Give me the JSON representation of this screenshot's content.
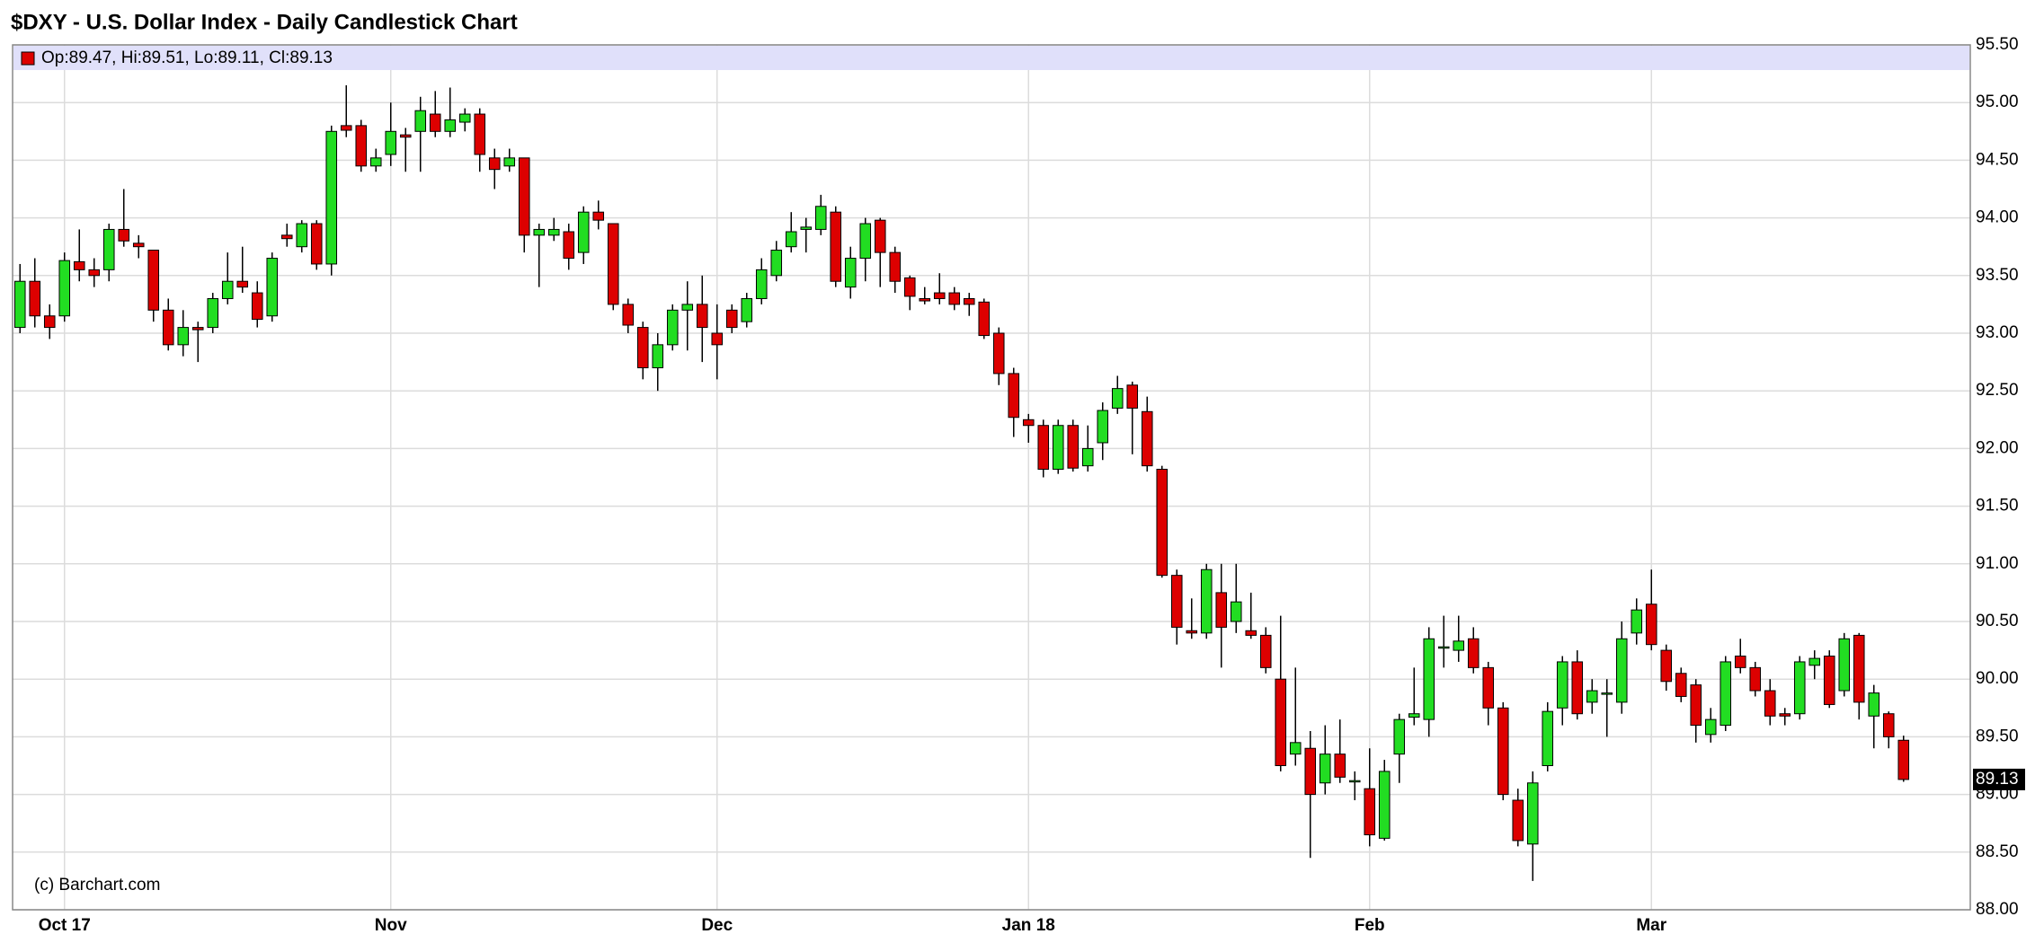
{
  "chart_data": {
    "type": "candlestick",
    "title": "$DXY - U.S. Dollar Index - Daily Candlestick Chart",
    "ohlc_label": "Op:89.47, Hi:89.51, Lo:89.11, Cl:89.13",
    "credit": "(c) Barchart.com",
    "up_color": "#22dd22",
    "down_color": "#dd0000",
    "grid": true,
    "ylim": [
      88,
      95.5
    ],
    "yticks": [
      {
        "value": 88,
        "label": "88.00"
      },
      {
        "value": 88.5,
        "label": "88.50"
      },
      {
        "value": 89,
        "label": "89.00"
      },
      {
        "value": 89.5,
        "label": "89.50"
      },
      {
        "value": 90,
        "label": "90.00"
      },
      {
        "value": 90.5,
        "label": "90.50"
      },
      {
        "value": 91,
        "label": "91.00"
      },
      {
        "value": 91.5,
        "label": "91.50"
      },
      {
        "value": 92,
        "label": "92.00"
      },
      {
        "value": 92.5,
        "label": "92.50"
      },
      {
        "value": 93,
        "label": "93.00"
      },
      {
        "value": 93.5,
        "label": "93.50"
      },
      {
        "value": 94,
        "label": "94.00"
      },
      {
        "value": 94.5,
        "label": "94.50"
      },
      {
        "value": 95,
        "label": "95.00"
      },
      {
        "value": 95.5,
        "label": "95.50"
      }
    ],
    "categories": [
      null,
      null,
      null,
      "Oct 17",
      null,
      null,
      null,
      null,
      null,
      null,
      null,
      null,
      null,
      null,
      null,
      null,
      null,
      null,
      null,
      null,
      null,
      null,
      null,
      null,
      null,
      "Nov",
      null,
      null,
      null,
      null,
      null,
      null,
      null,
      null,
      null,
      null,
      null,
      null,
      null,
      null,
      null,
      null,
      null,
      null,
      null,
      null,
      null,
      "Dec",
      null,
      null,
      null,
      null,
      null,
      null,
      null,
      null,
      null,
      null,
      null,
      null,
      null,
      null,
      null,
      null,
      null,
      null,
      null,
      null,
      "Jan 18",
      null,
      null,
      null,
      null,
      null,
      null,
      null,
      null,
      null,
      null,
      null,
      null,
      null,
      null,
      null,
      null,
      null,
      null,
      null,
      null,
      null,
      null,
      "Feb",
      null,
      null,
      null,
      null,
      null,
      null,
      null,
      null,
      null,
      null,
      null,
      null,
      null,
      null,
      null,
      null,
      null,
      null,
      "Mar",
      null,
      null,
      null,
      null,
      null,
      null,
      null,
      null,
      null,
      null,
      null,
      null,
      null,
      null,
      null,
      null,
      null
    ],
    "candles": [
      {
        "open": 93.05,
        "high": 93.6,
        "low": 93.0,
        "close": 93.45
      },
      {
        "open": 93.45,
        "high": 93.65,
        "low": 93.05,
        "close": 93.15
      },
      {
        "open": 93.15,
        "high": 93.25,
        "low": 92.95,
        "close": 93.05
      },
      {
        "open": 93.15,
        "high": 93.7,
        "low": 93.1,
        "close": 93.63
      },
      {
        "open": 93.62,
        "high": 93.9,
        "low": 93.45,
        "close": 93.55
      },
      {
        "open": 93.55,
        "high": 93.65,
        "low": 93.4,
        "close": 93.5
      },
      {
        "open": 93.55,
        "high": 93.95,
        "low": 93.45,
        "close": 93.9
      },
      {
        "open": 93.9,
        "high": 94.25,
        "low": 93.75,
        "close": 93.8
      },
      {
        "open": 93.78,
        "high": 93.85,
        "low": 93.65,
        "close": 93.75
      },
      {
        "open": 93.72,
        "high": 93.72,
        "low": 93.1,
        "close": 93.2
      },
      {
        "open": 93.2,
        "high": 93.3,
        "low": 92.85,
        "close": 92.9
      },
      {
        "open": 92.9,
        "high": 93.2,
        "low": 92.8,
        "close": 93.05
      },
      {
        "open": 93.05,
        "high": 93.1,
        "low": 92.75,
        "close": 93.03
      },
      {
        "open": 93.05,
        "high": 93.35,
        "low": 93.0,
        "close": 93.3
      },
      {
        "open": 93.3,
        "high": 93.7,
        "low": 93.25,
        "close": 93.45
      },
      {
        "open": 93.45,
        "high": 93.75,
        "low": 93.35,
        "close": 93.4
      },
      {
        "open": 93.35,
        "high": 93.45,
        "low": 93.05,
        "close": 93.12
      },
      {
        "open": 93.15,
        "high": 93.7,
        "low": 93.1,
        "close": 93.65
      },
      {
        "open": 93.85,
        "high": 93.95,
        "low": 93.75,
        "close": 93.82
      },
      {
        "open": 93.75,
        "high": 93.98,
        "low": 93.7,
        "close": 93.95
      },
      {
        "open": 93.95,
        "high": 93.98,
        "low": 93.55,
        "close": 93.6
      },
      {
        "open": 93.6,
        "high": 94.8,
        "low": 93.5,
        "close": 94.75
      },
      {
        "open": 94.8,
        "high": 95.15,
        "low": 94.7,
        "close": 94.76
      },
      {
        "open": 94.8,
        "high": 94.85,
        "low": 94.4,
        "close": 94.45
      },
      {
        "open": 94.45,
        "high": 94.6,
        "low": 94.4,
        "close": 94.52
      },
      {
        "open": 94.55,
        "high": 95.0,
        "low": 94.45,
        "close": 94.75
      },
      {
        "open": 94.72,
        "high": 94.78,
        "low": 94.4,
        "close": 94.7
      },
      {
        "open": 94.75,
        "high": 95.05,
        "low": 94.4,
        "close": 94.93
      },
      {
        "open": 94.9,
        "high": 95.1,
        "low": 94.7,
        "close": 94.75
      },
      {
        "open": 94.75,
        "high": 95.13,
        "low": 94.7,
        "close": 94.85
      },
      {
        "open": 94.83,
        "high": 94.95,
        "low": 94.75,
        "close": 94.9
      },
      {
        "open": 94.9,
        "high": 94.95,
        "low": 94.4,
        "close": 94.55
      },
      {
        "open": 94.52,
        "high": 94.6,
        "low": 94.25,
        "close": 94.42
      },
      {
        "open": 94.45,
        "high": 94.6,
        "low": 94.4,
        "close": 94.52
      },
      {
        "open": 94.52,
        "high": 94.52,
        "low": 93.7,
        "close": 93.85
      },
      {
        "open": 93.85,
        "high": 93.95,
        "low": 93.4,
        "close": 93.9
      },
      {
        "open": 93.85,
        "high": 94.0,
        "low": 93.8,
        "close": 93.9
      },
      {
        "open": 93.88,
        "high": 93.95,
        "low": 93.55,
        "close": 93.65
      },
      {
        "open": 93.7,
        "high": 94.1,
        "low": 93.6,
        "close": 94.05
      },
      {
        "open": 94.05,
        "high": 94.15,
        "low": 93.9,
        "close": 93.98
      },
      {
        "open": 93.95,
        "high": 93.95,
        "low": 93.2,
        "close": 93.25
      },
      {
        "open": 93.25,
        "high": 93.3,
        "low": 93.0,
        "close": 93.07
      },
      {
        "open": 93.05,
        "high": 93.1,
        "low": 92.6,
        "close": 92.7
      },
      {
        "open": 92.7,
        "high": 93.0,
        "low": 92.5,
        "close": 92.9
      },
      {
        "open": 92.9,
        "high": 93.25,
        "low": 92.85,
        "close": 93.2
      },
      {
        "open": 93.2,
        "high": 93.45,
        "low": 92.85,
        "close": 93.25
      },
      {
        "open": 93.25,
        "high": 93.5,
        "low": 92.75,
        "close": 93.05
      },
      {
        "open": 93.0,
        "high": 93.25,
        "low": 92.6,
        "close": 92.9
      },
      {
        "open": 93.2,
        "high": 93.25,
        "low": 93.0,
        "close": 93.05
      },
      {
        "open": 93.1,
        "high": 93.35,
        "low": 93.05,
        "close": 93.3
      },
      {
        "open": 93.3,
        "high": 93.65,
        "low": 93.25,
        "close": 93.55
      },
      {
        "open": 93.5,
        "high": 93.8,
        "low": 93.45,
        "close": 93.72
      },
      {
        "open": 93.75,
        "high": 94.05,
        "low": 93.7,
        "close": 93.88
      },
      {
        "open": 93.9,
        "high": 94.0,
        "low": 93.7,
        "close": 93.92
      },
      {
        "open": 93.9,
        "high": 94.2,
        "low": 93.85,
        "close": 94.1
      },
      {
        "open": 94.05,
        "high": 94.1,
        "low": 93.4,
        "close": 93.45
      },
      {
        "open": 93.4,
        "high": 93.75,
        "low": 93.3,
        "close": 93.65
      },
      {
        "open": 93.65,
        "high": 94.0,
        "low": 93.45,
        "close": 93.95
      },
      {
        "open": 93.98,
        "high": 94.0,
        "low": 93.4,
        "close": 93.7
      },
      {
        "open": 93.7,
        "high": 93.75,
        "low": 93.35,
        "close": 93.45
      },
      {
        "open": 93.48,
        "high": 93.5,
        "low": 93.2,
        "close": 93.32
      },
      {
        "open": 93.3,
        "high": 93.4,
        "low": 93.25,
        "close": 93.28
      },
      {
        "open": 93.35,
        "high": 93.52,
        "low": 93.25,
        "close": 93.3
      },
      {
        "open": 93.35,
        "high": 93.4,
        "low": 93.2,
        "close": 93.25
      },
      {
        "open": 93.3,
        "high": 93.35,
        "low": 93.15,
        "close": 93.25
      },
      {
        "open": 93.27,
        "high": 93.3,
        "low": 92.95,
        "close": 92.98
      },
      {
        "open": 93.0,
        "high": 93.05,
        "low": 92.55,
        "close": 92.65
      },
      {
        "open": 92.65,
        "high": 92.7,
        "low": 92.1,
        "close": 92.27
      },
      {
        "open": 92.25,
        "high": 92.3,
        "low": 92.05,
        "close": 92.2
      },
      {
        "open": 92.2,
        "high": 92.25,
        "low": 91.75,
        "close": 91.82
      },
      {
        "open": 91.82,
        "high": 92.25,
        "low": 91.78,
        "close": 92.2
      },
      {
        "open": 92.2,
        "high": 92.25,
        "low": 91.8,
        "close": 91.83
      },
      {
        "open": 91.85,
        "high": 92.2,
        "low": 91.8,
        "close": 92.0
      },
      {
        "open": 92.05,
        "high": 92.4,
        "low": 91.9,
        "close": 92.33
      },
      {
        "open": 92.35,
        "high": 92.63,
        "low": 92.3,
        "close": 92.52
      },
      {
        "open": 92.55,
        "high": 92.58,
        "low": 91.95,
        "close": 92.35
      },
      {
        "open": 92.32,
        "high": 92.45,
        "low": 91.8,
        "close": 91.85
      },
      {
        "open": 91.82,
        "high": 91.85,
        "low": 90.88,
        "close": 90.9
      },
      {
        "open": 90.9,
        "high": 90.95,
        "low": 90.3,
        "close": 90.45
      },
      {
        "open": 90.42,
        "high": 90.7,
        "low": 90.35,
        "close": 90.4
      },
      {
        "open": 90.4,
        "high": 91.0,
        "low": 90.35,
        "close": 90.95
      },
      {
        "open": 90.75,
        "high": 91.0,
        "low": 90.1,
        "close": 90.45
      },
      {
        "open": 90.5,
        "high": 91.0,
        "low": 90.4,
        "close": 90.67
      },
      {
        "open": 90.42,
        "high": 90.75,
        "low": 90.35,
        "close": 90.38
      },
      {
        "open": 90.38,
        "high": 90.45,
        "low": 90.05,
        "close": 90.1
      },
      {
        "open": 90.0,
        "high": 90.55,
        "low": 89.2,
        "close": 89.25
      },
      {
        "open": 89.35,
        "high": 90.1,
        "low": 89.25,
        "close": 89.45
      },
      {
        "open": 89.4,
        "high": 89.55,
        "low": 88.45,
        "close": 89.0
      },
      {
        "open": 89.1,
        "high": 89.6,
        "low": 89.0,
        "close": 89.35
      },
      {
        "open": 89.35,
        "high": 89.65,
        "low": 89.1,
        "close": 89.15
      },
      {
        "open": 89.12,
        "high": 89.2,
        "low": 88.95,
        "close": 89.12
      },
      {
        "open": 89.05,
        "high": 89.4,
        "low": 88.55,
        "close": 88.65
      },
      {
        "open": 88.62,
        "high": 89.3,
        "low": 88.6,
        "close": 89.2
      },
      {
        "open": 89.35,
        "high": 89.7,
        "low": 89.1,
        "close": 89.65
      },
      {
        "open": 89.67,
        "high": 90.1,
        "low": 89.6,
        "close": 89.7
      },
      {
        "open": 89.65,
        "high": 90.45,
        "low": 89.5,
        "close": 90.35
      },
      {
        "open": 90.27,
        "high": 90.55,
        "low": 90.1,
        "close": 90.28
      },
      {
        "open": 90.25,
        "high": 90.55,
        "low": 90.15,
        "close": 90.33
      },
      {
        "open": 90.35,
        "high": 90.45,
        "low": 90.05,
        "close": 90.1
      },
      {
        "open": 90.1,
        "high": 90.15,
        "low": 89.6,
        "close": 89.75
      },
      {
        "open": 89.75,
        "high": 89.8,
        "low": 88.95,
        "close": 89.0
      },
      {
        "open": 88.95,
        "high": 89.05,
        "low": 88.55,
        "close": 88.6
      },
      {
        "open": 88.57,
        "high": 89.2,
        "low": 88.25,
        "close": 89.1
      },
      {
        "open": 89.25,
        "high": 89.8,
        "low": 89.2,
        "close": 89.72
      },
      {
        "open": 89.75,
        "high": 90.2,
        "low": 89.6,
        "close": 90.15
      },
      {
        "open": 90.15,
        "high": 90.25,
        "low": 89.65,
        "close": 89.7
      },
      {
        "open": 89.8,
        "high": 90.0,
        "low": 89.7,
        "close": 89.9
      },
      {
        "open": 89.88,
        "high": 90.0,
        "low": 89.5,
        "close": 89.88
      },
      {
        "open": 89.8,
        "high": 90.5,
        "low": 89.7,
        "close": 90.35
      },
      {
        "open": 90.4,
        "high": 90.7,
        "low": 90.3,
        "close": 90.6
      },
      {
        "open": 90.65,
        "high": 90.95,
        "low": 90.25,
        "close": 90.3
      },
      {
        "open": 90.25,
        "high": 90.3,
        "low": 89.9,
        "close": 89.98
      },
      {
        "open": 90.05,
        "high": 90.1,
        "low": 89.8,
        "close": 89.85
      },
      {
        "open": 89.95,
        "high": 90.0,
        "low": 89.45,
        "close": 89.6
      },
      {
        "open": 89.52,
        "high": 89.75,
        "low": 89.45,
        "close": 89.65
      },
      {
        "open": 89.6,
        "high": 90.2,
        "low": 89.55,
        "close": 90.15
      },
      {
        "open": 90.2,
        "high": 90.35,
        "low": 90.05,
        "close": 90.1
      },
      {
        "open": 90.1,
        "high": 90.15,
        "low": 89.85,
        "close": 89.9
      },
      {
        "open": 89.9,
        "high": 90.0,
        "low": 89.6,
        "close": 89.68
      },
      {
        "open": 89.7,
        "high": 89.75,
        "low": 89.6,
        "close": 89.68
      },
      {
        "open": 89.7,
        "high": 90.2,
        "low": 89.65,
        "close": 90.15
      },
      {
        "open": 90.12,
        "high": 90.25,
        "low": 90.0,
        "close": 90.18
      },
      {
        "open": 90.2,
        "high": 90.25,
        "low": 89.75,
        "close": 89.78
      },
      {
        "open": 89.9,
        "high": 90.4,
        "low": 89.85,
        "close": 90.35
      },
      {
        "open": 90.38,
        "high": 90.4,
        "low": 89.65,
        "close": 89.8
      },
      {
        "open": 89.68,
        "high": 89.95,
        "low": 89.4,
        "close": 89.88
      },
      {
        "open": 89.7,
        "high": 89.72,
        "low": 89.4,
        "close": 89.5
      },
      {
        "open": 89.47,
        "high": 89.51,
        "low": 89.11,
        "close": 89.13
      }
    ]
  }
}
